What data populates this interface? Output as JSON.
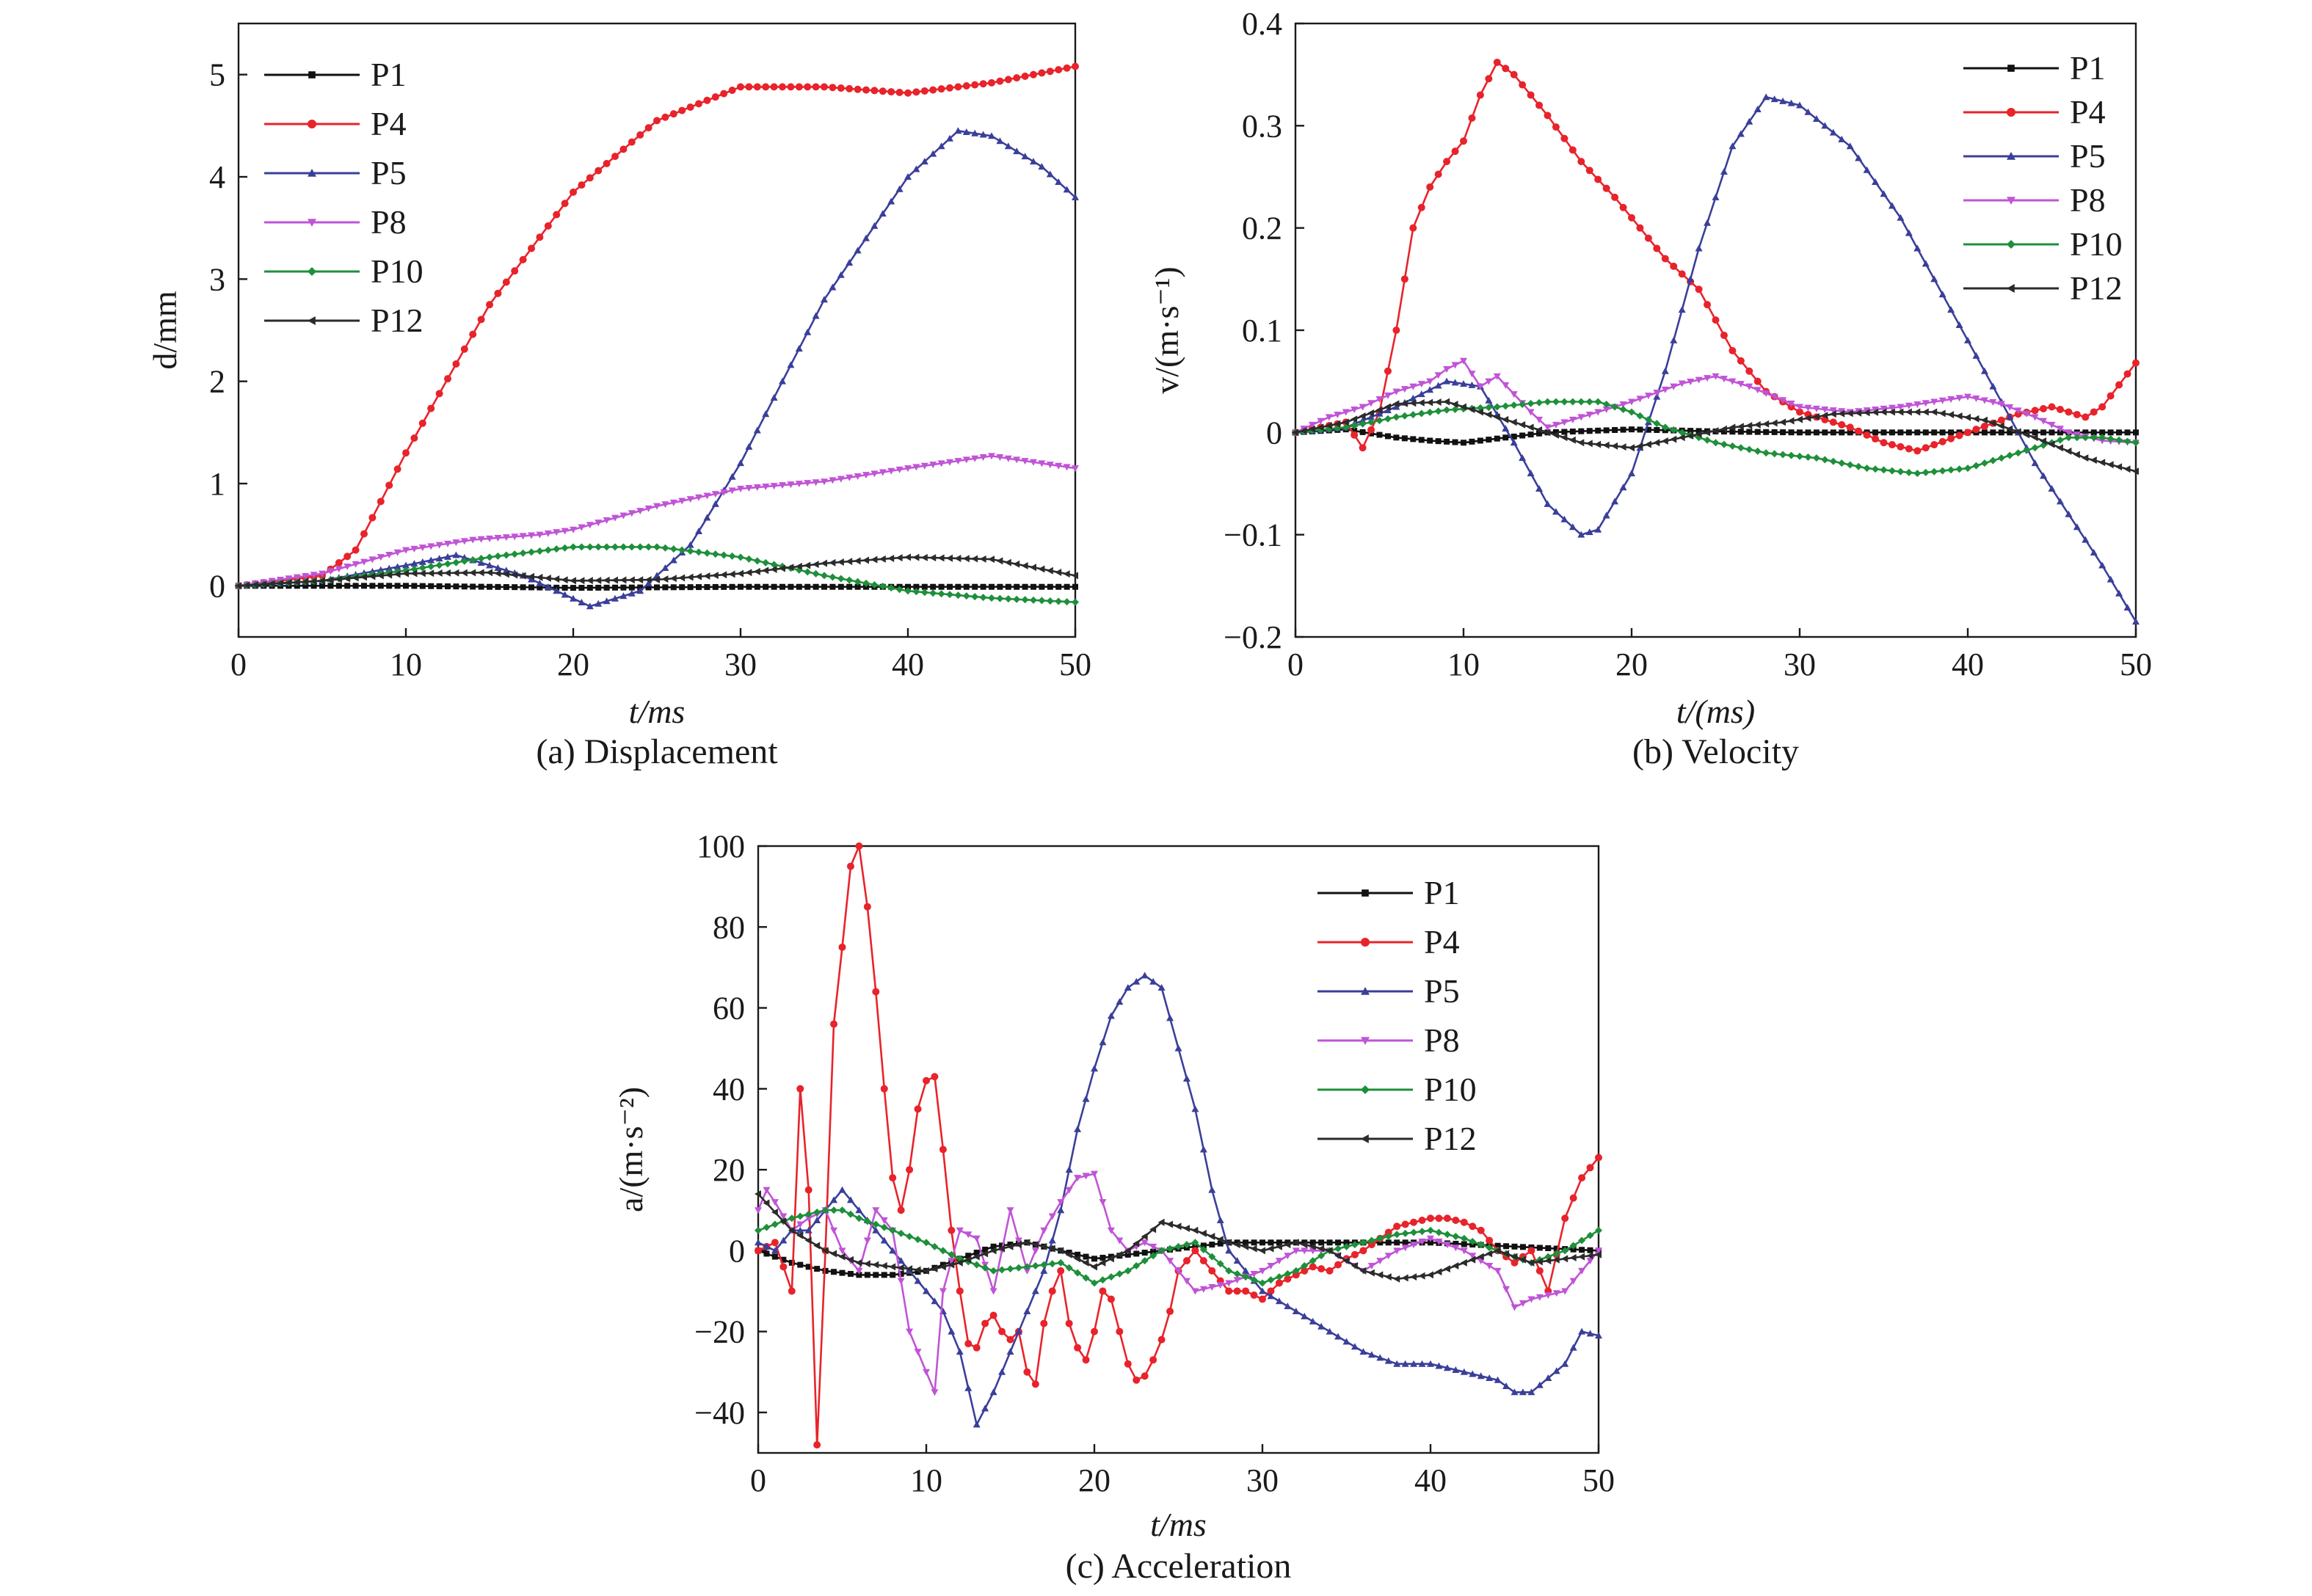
{
  "legend_entries": [
    "P1",
    "P4",
    "P5",
    "P8",
    "P10",
    "P12"
  ],
  "series_colors": {
    "P1": "#111111",
    "P4": "#e8232b",
    "P5": "#3a3f9a",
    "P8": "#c054d6",
    "P10": "#1e8f3a",
    "P12": "#2b2b2b"
  },
  "chart_data": [
    {
      "id": "a",
      "type": "line",
      "caption": "(a) Displacement",
      "xlabel": "t/ms",
      "ylabel": "d/mm",
      "xlim": [
        0,
        50
      ],
      "ylim": [
        -0.5,
        5.5
      ],
      "xticks": [
        "0",
        "10",
        "20",
        "30",
        "40",
        "50"
      ],
      "yticks": [
        "0",
        "1",
        "2",
        "3",
        "4",
        "5"
      ],
      "legend_position": "top-left",
      "series": [
        {
          "name": "P1",
          "x": [
            0,
            10,
            20,
            30,
            40,
            50
          ],
          "y": [
            0,
            0,
            -0.02,
            -0.01,
            -0.01,
            -0.01
          ]
        },
        {
          "name": "P4",
          "x": [
            0,
            5,
            7,
            10,
            15,
            20,
            25,
            30,
            35,
            40,
            45,
            50
          ],
          "y": [
            0,
            0.1,
            0.35,
            1.3,
            2.75,
            3.85,
            4.55,
            4.88,
            4.88,
            4.82,
            4.92,
            5.08
          ]
        },
        {
          "name": "P5",
          "x": [
            0,
            5,
            10,
            13,
            17,
            21,
            24,
            27,
            30,
            35,
            40,
            43,
            45,
            48,
            50
          ],
          "y": [
            0,
            0.05,
            0.2,
            0.3,
            0.1,
            -0.2,
            -0.05,
            0.4,
            1.2,
            2.8,
            4.0,
            4.45,
            4.4,
            4.1,
            3.8
          ]
        },
        {
          "name": "P8",
          "x": [
            0,
            5,
            10,
            14,
            18,
            20,
            25,
            30,
            35,
            40,
            45,
            50
          ],
          "y": [
            0,
            0.12,
            0.35,
            0.45,
            0.5,
            0.55,
            0.78,
            0.95,
            1.02,
            1.15,
            1.27,
            1.15
          ]
        },
        {
          "name": "P10",
          "x": [
            0,
            5,
            10,
            15,
            20,
            25,
            30,
            35,
            40,
            45,
            50
          ],
          "y": [
            0,
            0.05,
            0.15,
            0.28,
            0.38,
            0.38,
            0.28,
            0.1,
            -0.05,
            -0.12,
            -0.16
          ]
        },
        {
          "name": "P12",
          "x": [
            0,
            5,
            10,
            15,
            20,
            25,
            30,
            35,
            40,
            45,
            50
          ],
          "y": [
            0,
            0.05,
            0.12,
            0.13,
            0.05,
            0.06,
            0.12,
            0.22,
            0.28,
            0.26,
            0.1
          ]
        }
      ]
    },
    {
      "id": "b",
      "type": "line",
      "caption": "(b) Velocity",
      "xlabel": "t/(ms)",
      "ylabel": "v/(m·s⁻¹)",
      "xlim": [
        0,
        50
      ],
      "ylim": [
        -0.2,
        0.4
      ],
      "xticks": [
        "0",
        "10",
        "20",
        "30",
        "40",
        "50"
      ],
      "yticks": [
        "−0.2",
        "−0.1",
        "0",
        "0.1",
        "0.2",
        "0.3",
        "0.4"
      ],
      "legend_position": "top-right",
      "series": [
        {
          "name": "P1",
          "x": [
            0,
            3,
            6,
            8,
            10,
            15,
            20,
            25,
            30,
            35,
            40,
            45,
            50
          ],
          "y": [
            0,
            0.003,
            -0.005,
            -0.008,
            -0.01,
            0,
            0.003,
            0.001,
            0,
            0,
            0,
            0,
            0
          ]
        },
        {
          "name": "P4",
          "x": [
            0,
            3,
            4,
            5,
            6,
            7,
            8,
            9,
            10,
            11,
            12,
            13,
            15,
            17,
            19,
            20,
            22,
            24,
            26,
            28,
            30,
            33,
            35,
            37,
            40,
            43,
            45,
            47,
            48,
            50
          ],
          "y": [
            0,
            0.01,
            -0.015,
            0.02,
            0.1,
            0.2,
            0.24,
            0.265,
            0.285,
            0.33,
            0.362,
            0.35,
            0.31,
            0.265,
            0.23,
            0.21,
            0.17,
            0.14,
            0.08,
            0.04,
            0.02,
            0.005,
            -0.01,
            -0.018,
            0,
            0.018,
            0.025,
            0.015,
            0.025,
            0.068
          ]
        },
        {
          "name": "P5",
          "x": [
            0,
            3,
            6,
            9,
            11,
            13,
            15,
            17,
            18,
            20,
            22,
            24,
            26,
            28,
            30,
            33,
            36,
            39,
            42,
            44,
            46,
            48,
            50
          ],
          "y": [
            0,
            0.005,
            0.025,
            0.05,
            0.045,
            -0.01,
            -0.07,
            -0.1,
            -0.095,
            -0.04,
            0.06,
            0.18,
            0.28,
            0.328,
            0.32,
            0.28,
            0.21,
            0.12,
            0.03,
            -0.03,
            -0.08,
            -0.13,
            -0.185
          ]
        },
        {
          "name": "P8",
          "x": [
            0,
            2,
            4,
            6,
            8,
            9,
            10,
            11,
            12,
            14,
            15,
            17,
            20,
            23,
            25,
            27,
            30,
            33,
            36,
            40,
            42,
            44,
            46,
            48,
            50
          ],
          "y": [
            0,
            0.015,
            0.025,
            0.04,
            0.05,
            0.062,
            0.07,
            0.045,
            0.055,
            0.02,
            0.005,
            0.015,
            0.03,
            0.048,
            0.055,
            0.045,
            0.025,
            0.02,
            0.025,
            0.035,
            0.028,
            0.015,
            0.0,
            -0.008,
            -0.01
          ]
        },
        {
          "name": "P10",
          "x": [
            0,
            3,
            6,
            9,
            12,
            15,
            18,
            20,
            22,
            25,
            28,
            31,
            34,
            37,
            40,
            43,
            46,
            48,
            50
          ],
          "y": [
            0,
            0.005,
            0.015,
            0.022,
            0.025,
            0.03,
            0.03,
            0.02,
            0.005,
            -0.01,
            -0.02,
            -0.025,
            -0.035,
            -0.04,
            -0.035,
            -0.02,
            -0.005,
            -0.005,
            -0.01
          ]
        },
        {
          "name": "P12",
          "x": [
            0,
            3,
            6,
            9,
            12,
            15,
            17,
            20,
            23,
            26,
            29,
            32,
            35,
            38,
            41,
            44,
            47,
            50
          ],
          "y": [
            0,
            0.01,
            0.028,
            0.03,
            0.015,
            0.0,
            -0.01,
            -0.015,
            -0.005,
            0.005,
            0.01,
            0.018,
            0.02,
            0.02,
            0.012,
            -0.005,
            -0.025,
            -0.038
          ]
        }
      ]
    },
    {
      "id": "c",
      "type": "line",
      "caption": "(c) Acceleration",
      "xlabel": "t/ms",
      "ylabel": "a/(m·s⁻²)",
      "xlim": [
        0,
        50
      ],
      "ylim": [
        -50,
        100
      ],
      "xticks": [
        "0",
        "10",
        "20",
        "30",
        "40",
        "50"
      ],
      "yticks": [
        "−40",
        "−20",
        "0",
        "20",
        "40",
        "60",
        "80",
        "100"
      ],
      "legend_position": "top-right",
      "series": [
        {
          "name": "P1",
          "x": [
            0,
            2,
            4,
            6,
            8,
            10,
            12,
            14,
            16,
            18,
            20,
            22,
            24,
            26,
            28,
            30,
            35,
            40,
            45,
            50
          ],
          "y": [
            0,
            -3,
            -5,
            -6,
            -6,
            -5,
            -2,
            1,
            2,
            0,
            -2,
            -1,
            0,
            1,
            2,
            2,
            2,
            2,
            1,
            0
          ]
        },
        {
          "name": "P4",
          "x": [
            0,
            1,
            2,
            2.5,
            3,
            3.5,
            4,
            4.5,
            5,
            5.5,
            6,
            6.5,
            7,
            7.5,
            8,
            8.5,
            9,
            9.5,
            10,
            10.5,
            11,
            11.5,
            12,
            12.5,
            13,
            13.5,
            14,
            14.5,
            15,
            15.5,
            16,
            16.5,
            17,
            17.5,
            18,
            18.5,
            19,
            19.5,
            20,
            20.5,
            21,
            21.5,
            22,
            22.5,
            23,
            23.5,
            24,
            24.5,
            25,
            26,
            27,
            28,
            29,
            30,
            31,
            32,
            33,
            34,
            35,
            36,
            37,
            38,
            39,
            40,
            41,
            42,
            43,
            44,
            45,
            46,
            47,
            48,
            49,
            50
          ],
          "y": [
            0,
            2,
            -10,
            40,
            15,
            -48,
            0,
            56,
            75,
            95,
            100,
            85,
            64,
            40,
            18,
            10,
            20,
            35,
            42,
            43,
            25,
            5,
            -10,
            -23,
            -24,
            -18,
            -16,
            -20,
            -22,
            -20,
            -30,
            -33,
            -18,
            -10,
            -5,
            -18,
            -24,
            -27,
            -20,
            -10,
            -12,
            -20,
            -28,
            -32,
            -31,
            -27,
            -22,
            -15,
            -5,
            0,
            -5,
            -10,
            -10,
            -12,
            -8,
            -6,
            -4,
            -5,
            -2,
            0,
            3,
            6,
            7,
            8,
            8,
            7,
            5,
            0,
            -3,
            0,
            -10,
            8,
            18,
            23
          ]
        },
        {
          "name": "P5",
          "x": [
            0,
            1,
            2,
            3,
            4,
            5,
            6,
            7,
            8,
            9,
            10,
            11,
            12,
            13,
            14,
            15,
            16,
            17,
            18,
            19,
            20,
            21,
            22,
            23,
            24,
            25,
            26,
            27,
            28,
            30,
            32,
            34,
            36,
            38,
            40,
            42,
            44,
            45,
            46,
            48,
            49,
            50
          ],
          "y": [
            2,
            0,
            5,
            5,
            10,
            15,
            10,
            5,
            0,
            -5,
            -10,
            -15,
            -25,
            -43,
            -35,
            -25,
            -15,
            -5,
            10,
            30,
            45,
            58,
            65,
            68,
            65,
            50,
            35,
            15,
            0,
            -10,
            -15,
            -20,
            -25,
            -28,
            -28,
            -30,
            -32,
            -35,
            -35,
            -28,
            -20,
            -21
          ]
        },
        {
          "name": "P8",
          "x": [
            0,
            0.5,
            1,
            2,
            3,
            4,
            5,
            6,
            7,
            8,
            9,
            10,
            10.5,
            11,
            12,
            13,
            14,
            15,
            16,
            17,
            18,
            19,
            20,
            21,
            22,
            23,
            24,
            25,
            26,
            28,
            30,
            32,
            34,
            36,
            38,
            40,
            42,
            44,
            45,
            46,
            48,
            50
          ],
          "y": [
            10,
            15,
            12,
            5,
            8,
            10,
            0,
            -5,
            10,
            5,
            -20,
            -30,
            -35,
            -10,
            5,
            3,
            -10,
            10,
            -5,
            5,
            12,
            18,
            19,
            5,
            0,
            2,
            0,
            -5,
            -10,
            -8,
            -5,
            0,
            0,
            -5,
            0,
            3,
            0,
            -5,
            -14,
            -12,
            -10,
            0
          ]
        },
        {
          "name": "P10",
          "x": [
            0,
            2,
            4,
            5,
            6,
            8,
            10,
            12,
            14,
            16,
            18,
            20,
            22,
            24,
            26,
            28,
            30,
            32,
            34,
            36,
            38,
            40,
            42,
            44,
            46,
            48,
            50
          ],
          "y": [
            5,
            8,
            10,
            10,
            8,
            5,
            2,
            -2,
            -5,
            -4,
            -3,
            -8,
            -5,
            0,
            2,
            -5,
            -8,
            -5,
            0,
            2,
            4,
            5,
            3,
            0,
            -3,
            0,
            5
          ]
        },
        {
          "name": "P12",
          "x": [
            0,
            2,
            4,
            6,
            8,
            10,
            12,
            14,
            16,
            18,
            20,
            22,
            24,
            26,
            28,
            30,
            32,
            34,
            36,
            38,
            40,
            42,
            44,
            46,
            48,
            50
          ],
          "y": [
            14,
            5,
            0,
            -3,
            -4,
            -5,
            -3,
            0,
            2,
            0,
            -4,
            0,
            7,
            5,
            2,
            0,
            2,
            0,
            -5,
            -7,
            -6,
            -3,
            0,
            -3,
            -2,
            -1
          ]
        }
      ]
    }
  ]
}
